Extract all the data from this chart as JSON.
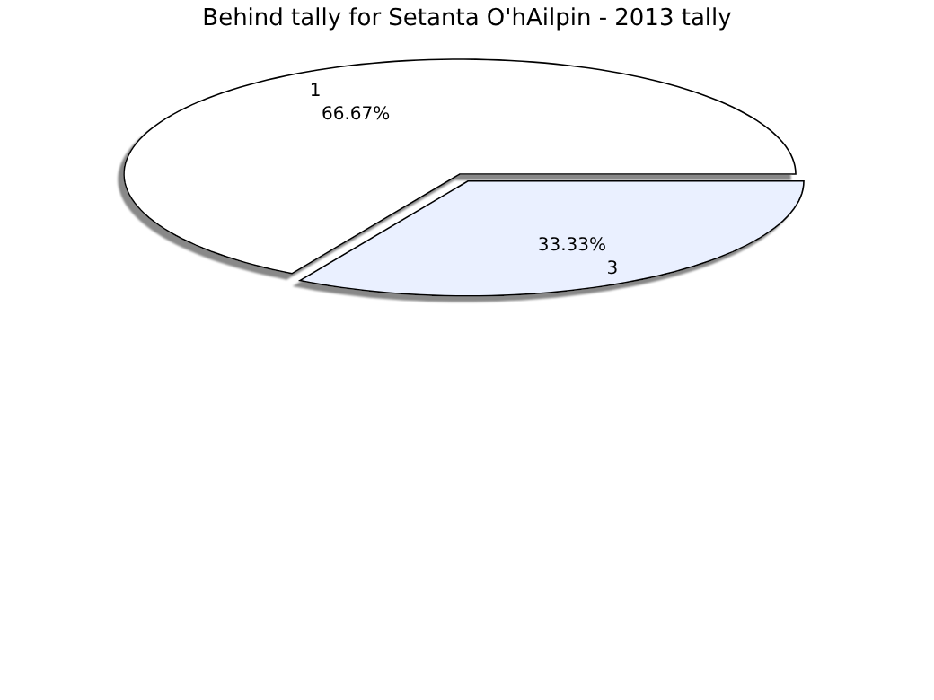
{
  "chart_data": {
    "type": "pie",
    "title": "Behind tally for Setanta O'hAilpin - 2013 tally",
    "categories": [
      "1",
      "3"
    ],
    "values": [
      66.67,
      33.33
    ],
    "value_labels": [
      "66.67%",
      "33.33%"
    ],
    "colors": [
      "#ffffff",
      "#eaf0ff"
    ]
  }
}
